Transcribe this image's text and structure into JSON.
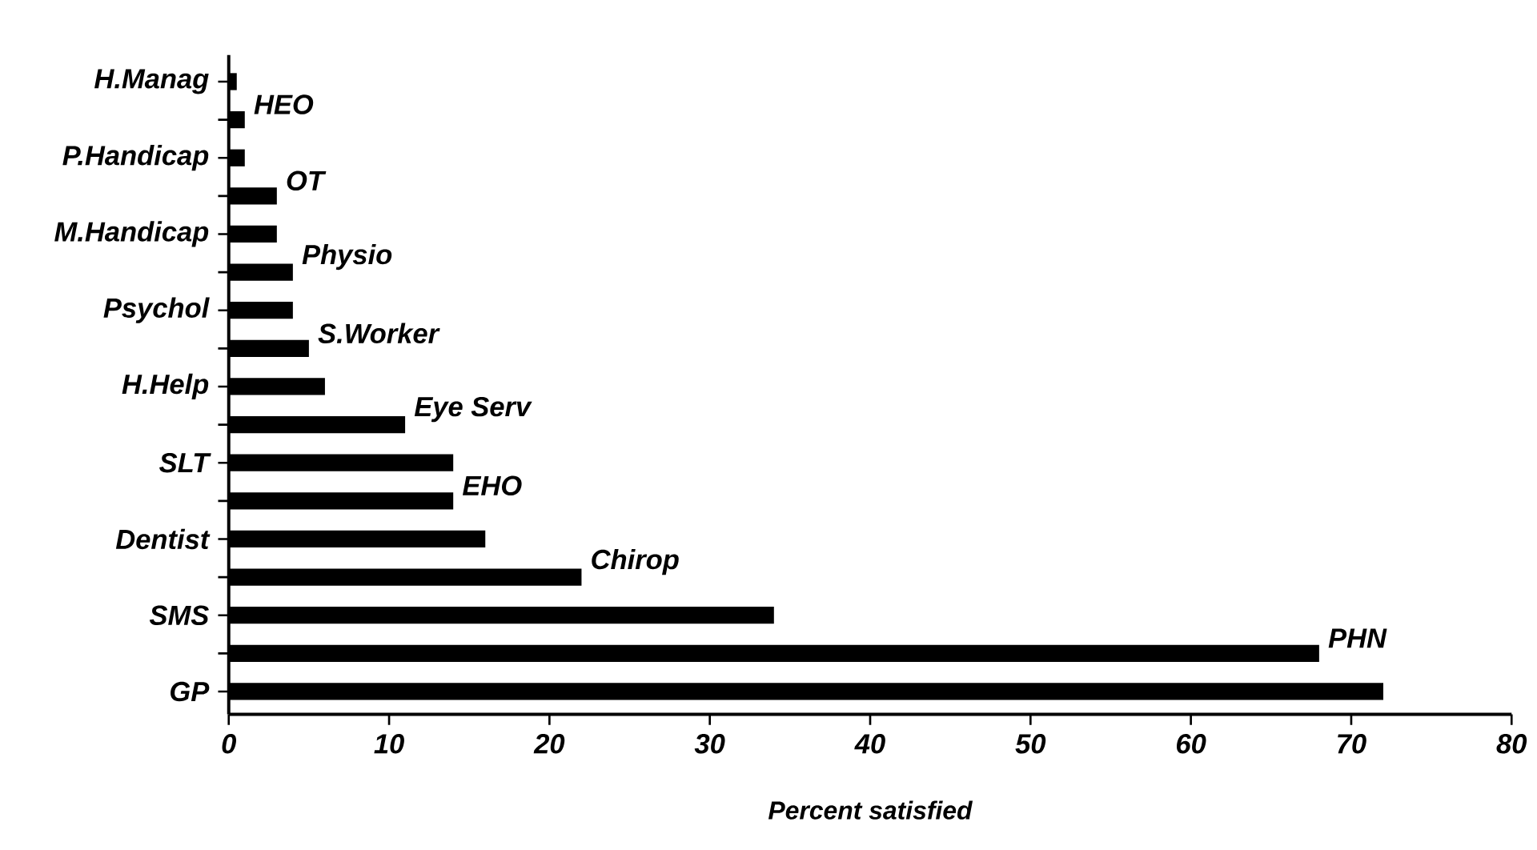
{
  "chart_data": {
    "type": "bar",
    "orientation": "horizontal",
    "xlabel": "Percent satisfied",
    "categories": [
      "H.Manag",
      "HEO",
      "P.Handicap",
      "OT",
      "M.Handicap",
      "Physio",
      "Psychol",
      "S.Worker",
      "H.Help",
      "Eye Serv",
      "SLT",
      "EHO",
      "Dentist",
      "Chirop",
      "SMS",
      "PHN",
      "GP"
    ],
    "values": [
      0.5,
      1,
      1,
      3,
      3,
      4,
      4,
      5,
      6,
      11,
      14,
      14,
      16,
      22,
      34,
      68,
      72
    ],
    "color": "#000000",
    "xlim": [
      0,
      80
    ],
    "xticks": [
      0,
      10,
      20,
      30,
      40,
      50,
      60,
      70,
      80
    ]
  }
}
